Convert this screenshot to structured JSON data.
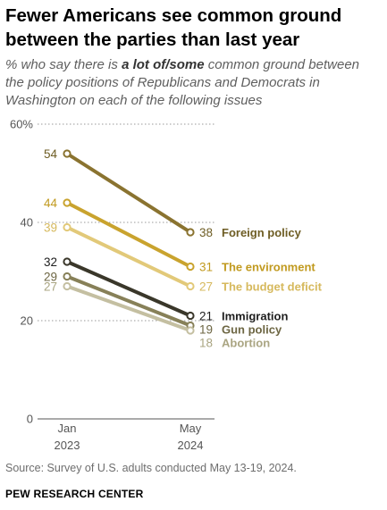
{
  "title": "Fewer Americans see common ground between the parties than last year",
  "subtitle": {
    "prefix": "% who say there is ",
    "emphasis": "a lot of/some",
    "suffix": " common ground between the policy positions of Republicans and Democrats in Washington on each of the following issues"
  },
  "source_note": "Source: Survey of U.S. adults conducted May 13-19, 2024.",
  "brand": "PEW RESEARCH CENTER",
  "chart_data": {
    "type": "line",
    "title": "Fewer Americans see common ground between the parties than last year",
    "x": [
      {
        "line1": "Jan",
        "line2": "2023"
      },
      {
        "line1": "May",
        "line2": "2024"
      }
    ],
    "ylim": [
      0,
      60
    ],
    "yticks": [
      0,
      20,
      40,
      60
    ],
    "ytick_labels": [
      "0",
      "20",
      "40",
      "60%"
    ],
    "grid": "dotted horizontal at 20, 40, 60",
    "series": [
      {
        "name": "Foreign policy",
        "values": [
          54,
          38
        ],
        "color": "#8a7330",
        "label_color": "#6e5d24"
      },
      {
        "name": "The environment",
        "values": [
          44,
          31
        ],
        "color": "#c9a32e",
        "label_color": "#c19a1f"
      },
      {
        "name": "The budget deficit",
        "values": [
          39,
          27
        ],
        "color": "#e2c979",
        "label_color": "#d6b95d"
      },
      {
        "name": "Immigration",
        "values": [
          32,
          21
        ],
        "color": "#3a372a",
        "label_color": "#1e1e1e"
      },
      {
        "name": "Gun policy",
        "values": [
          29,
          19
        ],
        "color": "#878058",
        "label_color": "#6d6643"
      },
      {
        "name": "Abortion",
        "values": [
          27,
          18
        ],
        "color": "#c4bfa1",
        "label_color": "#aaa582"
      }
    ]
  }
}
